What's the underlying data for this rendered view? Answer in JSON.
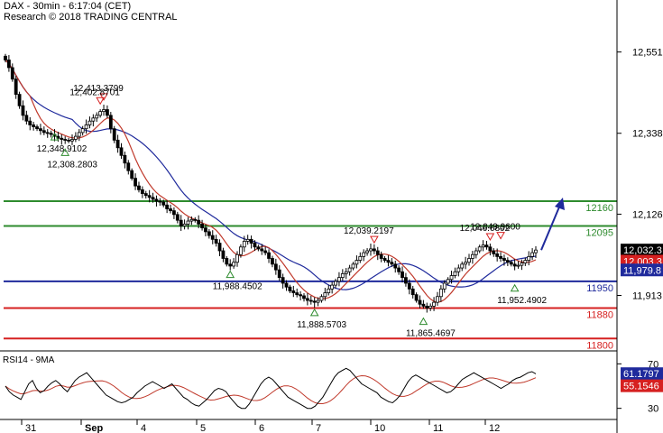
{
  "header": {
    "title": "DAX - 30min - 6:17:04 (CET)",
    "copyright": "Research © 2018 TRADING CENTRAL"
  },
  "chart_data": {
    "type": "candlestick",
    "instrument": "DAX",
    "timeframe": "30min",
    "price_axis": {
      "ticks": [
        {
          "label": "12,551",
          "value": 12551
        },
        {
          "label": "12,338",
          "value": 12338
        },
        {
          "label": "12,126",
          "value": 12126
        },
        {
          "label": "11,913",
          "value": 11913
        }
      ],
      "ylim": [
        11770,
        12640
      ]
    },
    "date_axis": {
      "labels": [
        "31",
        "Sep",
        "4",
        "5",
        "6",
        "7",
        "10",
        "11",
        "12"
      ]
    },
    "last_price_label": "12,032.3",
    "ma_labels": [
      "12,003.3",
      "11,979.8"
    ],
    "horizontal_levels": [
      {
        "label": "12160",
        "value": 12160,
        "color": "#2e8b2e"
      },
      {
        "label": "12095",
        "value": 12095,
        "color": "#2e8b2e"
      },
      {
        "label": "11950",
        "value": 11950,
        "color": "#1f2a9c"
      },
      {
        "label": "11880",
        "value": 11880,
        "color": "#d62020"
      },
      {
        "label": "11800",
        "value": 11800,
        "color": "#d62020"
      }
    ],
    "swing_annotations": [
      {
        "label": "12,413.3799",
        "type": "high",
        "value": 12413.38
      },
      {
        "label": "12,402.8701",
        "type": "high",
        "value": 12402.87
      },
      {
        "label": "12,348.9102",
        "type": "low",
        "value": 12348.91
      },
      {
        "label": "12,308.2803",
        "type": "low",
        "value": 12308.28
      },
      {
        "label": "11,988.4502",
        "type": "low",
        "value": 11988.45
      },
      {
        "label": "11,888.5703",
        "type": "low",
        "value": 11888.57
      },
      {
        "label": "12,039.2197",
        "type": "high",
        "value": 12039.22
      },
      {
        "label": "11,865.4697",
        "type": "low",
        "value": 11865.47
      },
      {
        "label": "12,046.6802",
        "type": "high",
        "value": 12046.68
      },
      {
        "label": "12,049.9600",
        "type": "high",
        "value": 12049.96
      },
      {
        "label": "11,952.4902",
        "type": "low",
        "value": 11952.49
      }
    ],
    "close_series": [
      12530,
      12510,
      12480,
      12440,
      12410,
      12385,
      12370,
      12360,
      12355,
      12350,
      12345,
      12340,
      12338,
      12335,
      12330,
      12325,
      12322,
      12320,
      12318,
      12322,
      12330,
      12340,
      12350,
      12360,
      12370,
      12378,
      12385,
      12395,
      12400,
      12385,
      12350,
      12320,
      12300,
      12280,
      12260,
      12240,
      12220,
      12200,
      12190,
      12180,
      12175,
      12170,
      12165,
      12160,
      12158,
      12150,
      12140,
      12135,
      12125,
      12110,
      12095,
      12100,
      12108,
      12112,
      12110,
      12100,
      12090,
      12080,
      12070,
      12060,
      12050,
      12030,
      12010,
      11995,
      11990,
      12000,
      12020,
      12040,
      12055,
      12060,
      12050,
      12040,
      12035,
      12030,
      12025,
      12010,
      11995,
      11980,
      11960,
      11945,
      11935,
      11925,
      11920,
      11915,
      11912,
      11905,
      11900,
      11898,
      11895,
      11900,
      11910,
      11920,
      11930,
      11940,
      11950,
      11960,
      11970,
      11975,
      11985,
      11995,
      12005,
      12015,
      12025,
      12030,
      12035,
      12030,
      12020,
      12010,
      12005,
      12000,
      11995,
      11985,
      11975,
      11960,
      11945,
      11930,
      11915,
      11900,
      11890,
      11885,
      11880,
      11885,
      11895,
      11910,
      11930,
      11945,
      11955,
      11965,
      11975,
      11985,
      11995,
      12000,
      12010,
      12020,
      12030,
      12040,
      12045,
      12040,
      12030,
      12022,
      12015,
      12010,
      12005,
      12000,
      11995,
      11990,
      11992,
      11998,
      12005,
      12015,
      12025,
      12032
    ],
    "sma_fast_label": "red",
    "sma_slow_label": "blue",
    "target_arrow": {
      "from": 12032,
      "to": 12160,
      "color": "#1f2a9c"
    },
    "rsi": {
      "title": "RSI14 - 9MA",
      "ticks": [
        {
          "label": "70",
          "value": 70
        },
        {
          "label": "30",
          "value": 30
        }
      ],
      "ylim": [
        20,
        80
      ],
      "value_label": "61.1797",
      "ma_label": "55.1546",
      "values": [
        50,
        45,
        42,
        40,
        38,
        45,
        52,
        55,
        48,
        44,
        46,
        50,
        53,
        55,
        52,
        48,
        45,
        50,
        55,
        58,
        60,
        62,
        58,
        54,
        50,
        46,
        42,
        40,
        38,
        36,
        35,
        36,
        38,
        40,
        44,
        47,
        50,
        52,
        54,
        52,
        50,
        48,
        50,
        52,
        48,
        44,
        40,
        38,
        35,
        33,
        32,
        35,
        38,
        42,
        46,
        48,
        47,
        45,
        40,
        36,
        32,
        30,
        30,
        34,
        40,
        46,
        52,
        56,
        58,
        56,
        52,
        48,
        44,
        40,
        38,
        36,
        34,
        32,
        30,
        30,
        32,
        36,
        40,
        46,
        52,
        58,
        62,
        64,
        66,
        64,
        60,
        56,
        52,
        50,
        48,
        46,
        44,
        40,
        38,
        36,
        35,
        38,
        42,
        48,
        54,
        58,
        60,
        58,
        56,
        54,
        52,
        50,
        48,
        46,
        44,
        45,
        48,
        52,
        56,
        58,
        60,
        62,
        60,
        58,
        56,
        54,
        52,
        50,
        48,
        50,
        52,
        55,
        57,
        58,
        60,
        62,
        63,
        61
      ]
    }
  }
}
